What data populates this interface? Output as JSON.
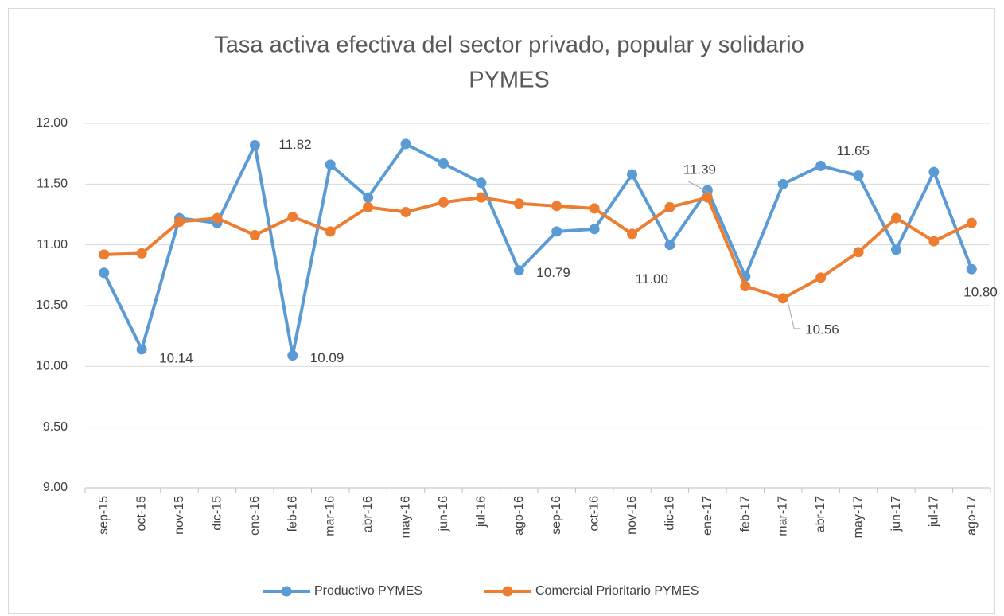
{
  "chart_data": {
    "type": "line",
    "title": [
      "Tasa activa efectiva del sector privado, popular y solidario",
      "PYMES"
    ],
    "categories": [
      "sep-15",
      "oct-15",
      "nov-15",
      "dic-15",
      "ene-16",
      "feb-16",
      "mar-16",
      "abr-16",
      "may-16",
      "jun-16",
      "jul-16",
      "ago-16",
      "sep-16",
      "oct-16",
      "nov-16",
      "dic-16",
      "ene-17",
      "feb-17",
      "mar-17",
      "abr-17",
      "may-17",
      "jun-17",
      "jul-17",
      "ago-17"
    ],
    "series": [
      {
        "name": "Productivo PYMES",
        "color": "#5b9bd5",
        "values": [
          10.77,
          10.14,
          11.22,
          11.18,
          11.82,
          10.09,
          11.66,
          11.39,
          11.83,
          11.67,
          11.51,
          10.79,
          11.11,
          11.13,
          11.58,
          11.0,
          11.45,
          10.74,
          11.5,
          11.65,
          11.57,
          10.96,
          11.6,
          10.8
        ],
        "value_labels": [
          null,
          "10.14",
          null,
          null,
          "11.82",
          "10.09",
          null,
          null,
          null,
          null,
          null,
          "10.79",
          null,
          null,
          null,
          "11.00",
          null,
          null,
          null,
          "11.65",
          null,
          null,
          null,
          "10.80"
        ]
      },
      {
        "name": "Comercial Prioritario PYMES",
        "color": "#ed7d31",
        "values": [
          10.92,
          10.93,
          11.19,
          11.22,
          11.08,
          11.23,
          11.11,
          11.31,
          11.27,
          11.35,
          11.39,
          11.34,
          11.32,
          11.3,
          11.09,
          11.31,
          11.39,
          10.66,
          10.56,
          10.73,
          10.94,
          11.22,
          11.03,
          11.18
        ],
        "value_labels": [
          null,
          null,
          null,
          null,
          null,
          null,
          null,
          null,
          null,
          null,
          null,
          null,
          null,
          null,
          null,
          null,
          "11.39",
          null,
          "10.56",
          null,
          null,
          null,
          null,
          null
        ]
      }
    ],
    "ylim": [
      9,
      12
    ],
    "yticks": [
      {
        "value": 9,
        "label": "9.00"
      },
      {
        "value": 9.5,
        "label": "9.50"
      },
      {
        "value": 10,
        "label": "10.00"
      },
      {
        "value": 10.5,
        "label": "10.50"
      },
      {
        "value": 11,
        "label": "11.00"
      },
      {
        "value": 11.5,
        "label": "11.50"
      },
      {
        "value": 12,
        "label": "12.00"
      }
    ],
    "grid": true,
    "legend": "bottom"
  }
}
